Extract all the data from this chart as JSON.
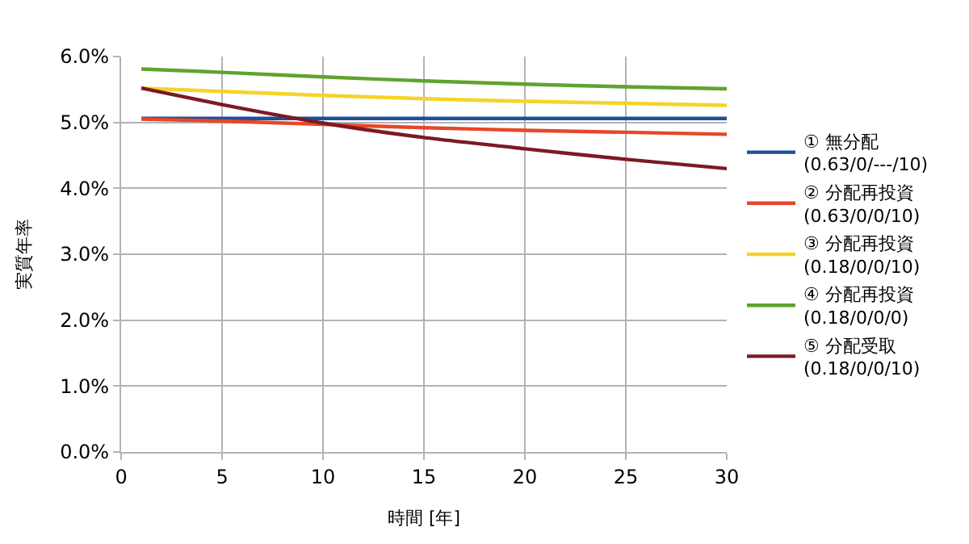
{
  "chart_data": {
    "type": "line",
    "xlabel": "時間 [年]",
    "ylabel": "実質年率",
    "x": [
      1,
      5,
      10,
      15,
      20,
      25,
      30
    ],
    "series": [
      {
        "name": "① 無分配\n(0.63/0/---/10)",
        "color": "#1f4e9a",
        "values": [
          5.06,
          5.06,
          5.06,
          5.06,
          5.06,
          5.06,
          5.06
        ]
      },
      {
        "name": "② 分配再投資\n(0.63/0/0/10)",
        "color": "#e8462a",
        "values": [
          5.05,
          5.02,
          4.97,
          4.92,
          4.88,
          4.85,
          4.82
        ]
      },
      {
        "name": "③ 分配再投資\n(0.18/0/0/10)",
        "color": "#f5d327",
        "values": [
          5.52,
          5.47,
          5.41,
          5.36,
          5.32,
          5.29,
          5.26
        ]
      },
      {
        "name": "④ 分配再投資\n(0.18/0/0/0)",
        "color": "#5ea32e",
        "values": [
          5.81,
          5.76,
          5.69,
          5.63,
          5.58,
          5.54,
          5.51
        ]
      },
      {
        "name": "⑤ 分配受取\n(0.18/0/0/10)",
        "color": "#7b1a22",
        "values": [
          5.52,
          5.27,
          4.99,
          4.77,
          4.6,
          4.44,
          4.3
        ]
      }
    ],
    "xlim": [
      0,
      30
    ],
    "xticks": [
      0,
      5,
      10,
      15,
      20,
      25,
      30
    ],
    "ylim": [
      0,
      6
    ],
    "yticks": [
      {
        "value": 0,
        "label": "0.0%"
      },
      {
        "value": 1,
        "label": "1.0%"
      },
      {
        "value": 2,
        "label": "2.0%"
      },
      {
        "value": 3,
        "label": "3.0%"
      },
      {
        "value": 4,
        "label": "4.0%"
      },
      {
        "value": 5,
        "label": "5.0%"
      },
      {
        "value": 6,
        "label": "6.0%"
      }
    ],
    "grid": true,
    "legend": "right",
    "marker": "none",
    "line_style": "solid"
  }
}
